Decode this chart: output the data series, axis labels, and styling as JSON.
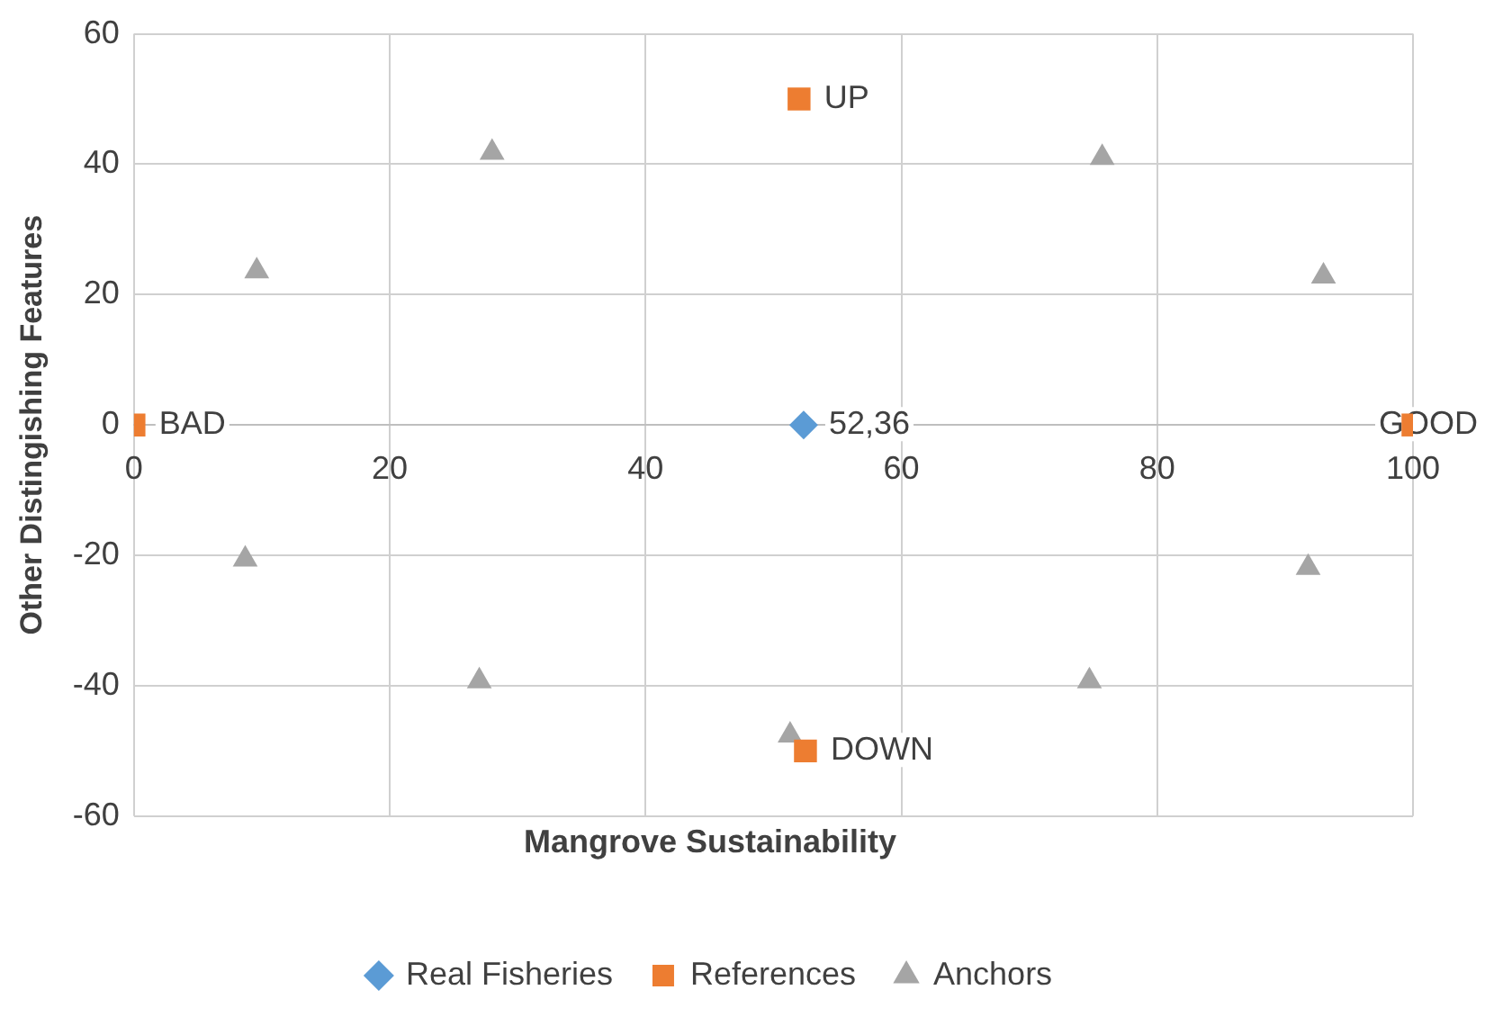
{
  "chart_data": {
    "type": "scatter",
    "xlabel": "Mangrove Sustainability",
    "ylabel": "Other Distingishing Features",
    "xlim": [
      0,
      100
    ],
    "xticks": [
      0,
      20,
      40,
      60,
      80,
      100
    ],
    "ylim": [
      -60,
      60
    ],
    "yticks": [
      -60,
      -40,
      -20,
      0,
      20,
      40,
      60
    ],
    "grid": true,
    "legend": "bottom",
    "annotations": [
      {
        "text": "52,36",
        "x": 52.36,
        "y": 0
      }
    ],
    "series": [
      {
        "name": "Real Fisheries",
        "color": "#5b9bd5",
        "marker": "diamond",
        "x": [
          52.36
        ],
        "values": [
          0
        ]
      },
      {
        "name": "References",
        "color": "#ed7d31",
        "marker": "square",
        "x": [
          0,
          100,
          52,
          52.5
        ],
        "values": [
          0,
          0,
          50,
          -50
        ],
        "value_labels": [
          "BAD",
          "GOOD",
          "UP",
          "DOWN"
        ]
      },
      {
        "name": "Anchors",
        "color": "#a5a5a5",
        "marker": "triangle",
        "x": [
          28,
          9.6,
          8.7,
          27,
          51.3,
          74.7,
          75.7,
          93,
          91.8
        ],
        "values": [
          41.8,
          23.6,
          -20.6,
          -39.3,
          -47.6,
          -39.3,
          41,
          22.8,
          -21.9
        ]
      }
    ]
  }
}
